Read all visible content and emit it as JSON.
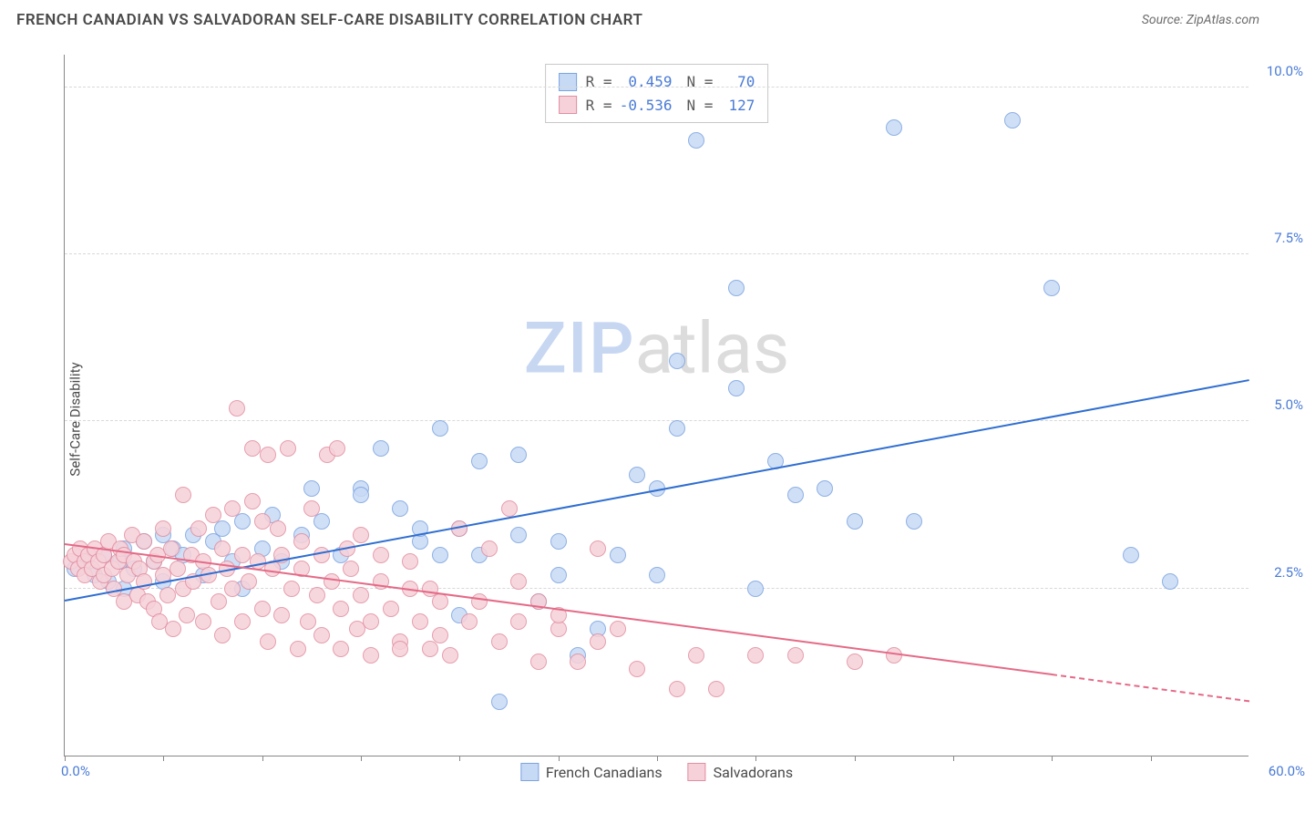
{
  "header": {
    "title": "FRENCH CANADIAN VS SALVADORAN SELF-CARE DISABILITY CORRELATION CHART",
    "source": "Source: ZipAtlas.com"
  },
  "chart": {
    "type": "scatter",
    "ylabel": "Self-Care Disability",
    "xlim": [
      0,
      60
    ],
    "ylim": [
      0,
      10.5
    ],
    "ytick_values": [
      2.5,
      5.0,
      7.5,
      10.0
    ],
    "ytick_labels": [
      "2.5%",
      "5.0%",
      "7.5%",
      "10.0%"
    ],
    "xtick_positions": [
      0,
      5,
      10,
      15,
      20,
      25,
      30,
      35,
      40,
      45,
      50,
      55
    ],
    "xtick_left_label": "0.0%",
    "xtick_right_label": "60.0%",
    "background_color": "#ffffff",
    "grid_color": "#d8d8d8",
    "marker_radius": 9,
    "marker_stroke_width": 1,
    "series": [
      {
        "name": "French Canadians",
        "fill_color": "#c7daf5",
        "stroke_color": "#7ba3e0",
        "trend_color": "#2f6ed1",
        "R": "0.459",
        "N": "70",
        "trend": {
          "x1": 0,
          "y1": 2.3,
          "x2": 60,
          "y2": 5.6
        },
        "points": [
          [
            0.5,
            2.8
          ],
          [
            1,
            2.9
          ],
          [
            1.5,
            2.7
          ],
          [
            2,
            3.0
          ],
          [
            2.2,
            2.6
          ],
          [
            2.8,
            2.9
          ],
          [
            3,
            3.1
          ],
          [
            3,
            2.5
          ],
          [
            3.5,
            2.8
          ],
          [
            4,
            3.2
          ],
          [
            4.5,
            2.9
          ],
          [
            5,
            3.3
          ],
          [
            5,
            2.6
          ],
          [
            5.5,
            3.1
          ],
          [
            6,
            3.0
          ],
          [
            6.5,
            3.3
          ],
          [
            7,
            2.7
          ],
          [
            7.5,
            3.2
          ],
          [
            8,
            3.4
          ],
          [
            8.5,
            2.9
          ],
          [
            9,
            3.5
          ],
          [
            9,
            2.5
          ],
          [
            10,
            3.1
          ],
          [
            10.5,
            3.6
          ],
          [
            11,
            2.9
          ],
          [
            12,
            3.3
          ],
          [
            12.5,
            4.0
          ],
          [
            13,
            3.5
          ],
          [
            14,
            3.0
          ],
          [
            15,
            4.0
          ],
          [
            15,
            3.9
          ],
          [
            16,
            4.6
          ],
          [
            17,
            3.7
          ],
          [
            18,
            3.2
          ],
          [
            18,
            3.4
          ],
          [
            19,
            3.0
          ],
          [
            19,
            4.9
          ],
          [
            20,
            2.1
          ],
          [
            20,
            3.4
          ],
          [
            21,
            3.0
          ],
          [
            21,
            4.4
          ],
          [
            22,
            0.8
          ],
          [
            23,
            3.3
          ],
          [
            23,
            4.5
          ],
          [
            24,
            2.3
          ],
          [
            25,
            3.2
          ],
          [
            25,
            2.7
          ],
          [
            26,
            1.5
          ],
          [
            27,
            1.9
          ],
          [
            28,
            3.0
          ],
          [
            29,
            4.2
          ],
          [
            30,
            2.7
          ],
          [
            30,
            4.0
          ],
          [
            31,
            4.9
          ],
          [
            31,
            5.9
          ],
          [
            32,
            9.2
          ],
          [
            34,
            7.0
          ],
          [
            34,
            5.5
          ],
          [
            35,
            2.5
          ],
          [
            36,
            4.4
          ],
          [
            37,
            3.9
          ],
          [
            38.5,
            4.0
          ],
          [
            40,
            3.5
          ],
          [
            42,
            9.4
          ],
          [
            43,
            3.5
          ],
          [
            48,
            9.5
          ],
          [
            50,
            7.0
          ],
          [
            54,
            3.0
          ],
          [
            56,
            2.6
          ]
        ]
      },
      {
        "name": "Salvadorans",
        "fill_color": "#f6d1d9",
        "stroke_color": "#e28ea0",
        "trend_color": "#e56a87",
        "R": "-0.536",
        "N": "127",
        "trend": {
          "x1": 0,
          "y1": 3.15,
          "x2": 50,
          "y2": 1.2
        },
        "trend_dash": {
          "x1": 50,
          "y1": 1.2,
          "x2": 60,
          "y2": 0.8
        },
        "points": [
          [
            0.3,
            2.9
          ],
          [
            0.5,
            3.0
          ],
          [
            0.7,
            2.8
          ],
          [
            0.8,
            3.1
          ],
          [
            1,
            2.9
          ],
          [
            1,
            2.7
          ],
          [
            1.2,
            3.0
          ],
          [
            1.4,
            2.8
          ],
          [
            1.5,
            3.1
          ],
          [
            1.7,
            2.9
          ],
          [
            1.8,
            2.6
          ],
          [
            2,
            3.0
          ],
          [
            2,
            2.7
          ],
          [
            2.2,
            3.2
          ],
          [
            2.4,
            2.8
          ],
          [
            2.5,
            2.5
          ],
          [
            2.7,
            2.9
          ],
          [
            2.8,
            3.1
          ],
          [
            3,
            3.0
          ],
          [
            3,
            2.3
          ],
          [
            3.2,
            2.7
          ],
          [
            3.4,
            3.3
          ],
          [
            3.5,
            2.9
          ],
          [
            3.7,
            2.4
          ],
          [
            3.8,
            2.8
          ],
          [
            4,
            2.6
          ],
          [
            4,
            3.2
          ],
          [
            4.2,
            2.3
          ],
          [
            4.5,
            2.9
          ],
          [
            4.5,
            2.2
          ],
          [
            4.7,
            3.0
          ],
          [
            4.8,
            2.0
          ],
          [
            5,
            2.7
          ],
          [
            5,
            3.4
          ],
          [
            5.2,
            2.4
          ],
          [
            5.4,
            3.1
          ],
          [
            5.5,
            1.9
          ],
          [
            5.7,
            2.8
          ],
          [
            6,
            2.5
          ],
          [
            6,
            3.9
          ],
          [
            6.2,
            2.1
          ],
          [
            6.4,
            3.0
          ],
          [
            6.5,
            2.6
          ],
          [
            6.8,
            3.4
          ],
          [
            7,
            2.9
          ],
          [
            7,
            2.0
          ],
          [
            7.3,
            2.7
          ],
          [
            7.5,
            3.6
          ],
          [
            7.8,
            2.3
          ],
          [
            8,
            3.1
          ],
          [
            8,
            1.8
          ],
          [
            8.2,
            2.8
          ],
          [
            8.5,
            3.7
          ],
          [
            8.5,
            2.5
          ],
          [
            8.7,
            5.2
          ],
          [
            9,
            3.0
          ],
          [
            9,
            2.0
          ],
          [
            9.3,
            2.6
          ],
          [
            9.5,
            3.8
          ],
          [
            9.5,
            4.6
          ],
          [
            9.8,
            2.9
          ],
          [
            10,
            2.2
          ],
          [
            10,
            3.5
          ],
          [
            10.3,
            4.5
          ],
          [
            10.3,
            1.7
          ],
          [
            10.5,
            2.8
          ],
          [
            10.8,
            3.4
          ],
          [
            11,
            2.1
          ],
          [
            11,
            3.0
          ],
          [
            11.3,
            4.6
          ],
          [
            11.5,
            2.5
          ],
          [
            11.8,
            1.6
          ],
          [
            12,
            3.2
          ],
          [
            12,
            2.8
          ],
          [
            12.3,
            2.0
          ],
          [
            12.5,
            3.7
          ],
          [
            12.8,
            2.4
          ],
          [
            13,
            3.0
          ],
          [
            13,
            1.8
          ],
          [
            13.3,
            4.5
          ],
          [
            13.5,
            2.6
          ],
          [
            13.8,
            4.6
          ],
          [
            14,
            2.2
          ],
          [
            14,
            1.6
          ],
          [
            14.3,
            3.1
          ],
          [
            14.5,
            2.8
          ],
          [
            14.8,
            1.9
          ],
          [
            15,
            2.4
          ],
          [
            15,
            3.3
          ],
          [
            15.5,
            2.0
          ],
          [
            15.5,
            1.5
          ],
          [
            16,
            2.6
          ],
          [
            16,
            3.0
          ],
          [
            16.5,
            2.2
          ],
          [
            17,
            1.7
          ],
          [
            17,
            1.6
          ],
          [
            17.5,
            2.9
          ],
          [
            17.5,
            2.5
          ],
          [
            18,
            2.0
          ],
          [
            18.5,
            2.5
          ],
          [
            18.5,
            1.6
          ],
          [
            19,
            2.3
          ],
          [
            19,
            1.8
          ],
          [
            19.5,
            1.5
          ],
          [
            20,
            3.4
          ],
          [
            20.5,
            2.0
          ],
          [
            21,
            2.3
          ],
          [
            21.5,
            3.1
          ],
          [
            22,
            1.7
          ],
          [
            22.5,
            3.7
          ],
          [
            23,
            2.6
          ],
          [
            23,
            2.0
          ],
          [
            24,
            2.3
          ],
          [
            24,
            1.4
          ],
          [
            25,
            1.9
          ],
          [
            25,
            2.1
          ],
          [
            26,
            1.4
          ],
          [
            27,
            1.7
          ],
          [
            27,
            3.1
          ],
          [
            28,
            1.9
          ],
          [
            29,
            1.3
          ],
          [
            31,
            1.0
          ],
          [
            32,
            1.5
          ],
          [
            33,
            1.0
          ],
          [
            35,
            1.5
          ],
          [
            37,
            1.5
          ],
          [
            40,
            1.4
          ],
          [
            42,
            1.5
          ]
        ]
      }
    ],
    "bottom_legend": [
      {
        "label": "French Canadians",
        "fill": "#c7daf5",
        "stroke": "#7ba3e0"
      },
      {
        "label": "Salvadorans",
        "fill": "#f6d1d9",
        "stroke": "#e28ea0"
      }
    ],
    "watermark": {
      "part1": "ZIP",
      "part2": "atlas"
    }
  }
}
